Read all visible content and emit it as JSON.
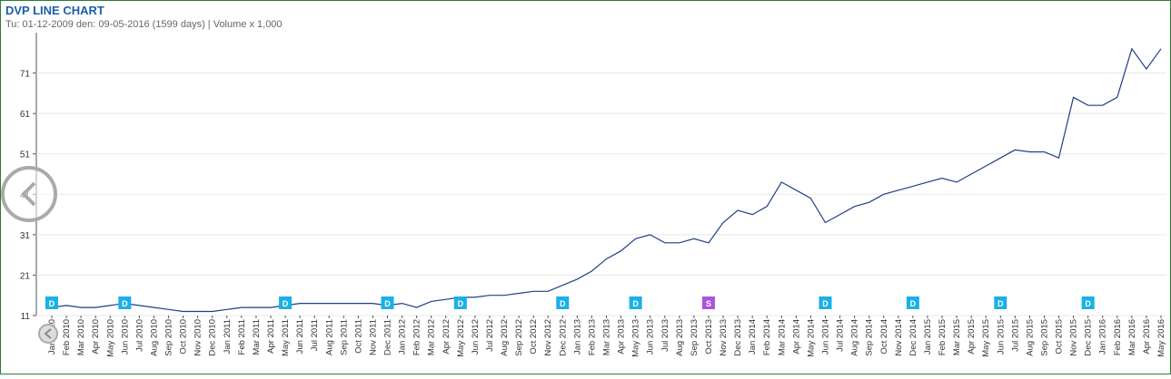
{
  "chart_data": {
    "type": "line",
    "title": "DVP LINE CHART",
    "subtitle": "Tu: 01-12-2009 den: 09-05-2016 (1599 days) | Volume x 1,000",
    "categories": [
      "Jan 2010",
      "Feb 2010",
      "Mar 2010",
      "Apr 2010",
      "May 2010",
      "Jun 2010",
      "Jul 2010",
      "Aug 2010",
      "Sep 2010",
      "Oct 2010",
      "Nov 2010",
      "Dec 2010",
      "Jan 2011",
      "Feb 2011",
      "Mar 2011",
      "Apr 2011",
      "May 2011",
      "Jun 2011",
      "Jul 2011",
      "Aug 2011",
      "Sep 2011",
      "Oct 2011",
      "Nov 2011",
      "Dec 2011",
      "Jan 2012",
      "Feb 2012",
      "Mar 2012",
      "Apr 2012",
      "May 2012",
      "Jun 2012",
      "Jul 2012",
      "Aug 2012",
      "Sep 2012",
      "Oct 2012",
      "Nov 2012",
      "Dec 2012",
      "Jan 2013",
      "Feb 2013",
      "Mar 2013",
      "Apr 2013",
      "May 2013",
      "Jun 2013",
      "Jul 2013",
      "Aug 2013",
      "Sep 2013",
      "Oct 2013",
      "Nov 2013",
      "Dec 2013",
      "Jan 2014",
      "Feb 2014",
      "Mar 2014",
      "Apr 2014",
      "May 2014",
      "Jun 2014",
      "Jul 2014",
      "Aug 2014",
      "Sep 2014",
      "Oct 2014",
      "Nov 2014",
      "Dec 2014",
      "Jan 2015",
      "Feb 2015",
      "Mar 2015",
      "Apr 2015",
      "May 2015",
      "Jun 2015",
      "Jul 2015",
      "Aug 2015",
      "Sep 2015",
      "Oct 2015",
      "Nov 2015",
      "Dec 2015",
      "Jan 2016",
      "Feb 2016",
      "Mar 2016",
      "Apr 2016",
      "May 2016"
    ],
    "series": [
      {
        "name": "DVP",
        "color": "#1f3f86",
        "values": [
          13,
          13.5,
          13,
          13,
          13.5,
          14,
          13.5,
          13,
          12.5,
          12,
          12,
          12,
          12.5,
          13,
          13,
          13,
          13.5,
          14,
          14,
          14,
          14,
          14,
          14,
          13.5,
          14,
          13,
          14.5,
          15,
          15.5,
          15.5,
          16,
          16,
          16.5,
          17,
          17,
          18.5,
          20,
          22,
          25,
          27,
          30,
          31,
          29,
          29,
          30,
          29,
          34,
          37,
          36,
          38,
          44,
          42,
          40,
          34,
          36,
          38,
          39,
          41,
          42,
          43,
          44,
          45,
          44,
          46,
          48,
          50,
          52,
          51.5,
          51.5,
          50,
          65,
          63,
          63,
          65,
          77,
          72,
          77
        ]
      }
    ],
    "ylim": [
      11,
      81
    ],
    "yticks": [
      11,
      21,
      31,
      41,
      51,
      61,
      71
    ],
    "grid": true,
    "annotations": [
      {
        "x": "Jan 2010",
        "label": "D",
        "color": "#1ab0e8"
      },
      {
        "x": "Jun 2010",
        "label": "D",
        "color": "#1ab0e8"
      },
      {
        "x": "May 2011",
        "label": "D",
        "color": "#1ab0e8"
      },
      {
        "x": "Dec 2011",
        "label": "D",
        "color": "#1ab0e8"
      },
      {
        "x": "May 2012",
        "label": "D",
        "color": "#1ab0e8"
      },
      {
        "x": "Dec 2012",
        "label": "D",
        "color": "#1ab0e8"
      },
      {
        "x": "May 2013",
        "label": "D",
        "color": "#1ab0e8"
      },
      {
        "x": "Oct 2013",
        "label": "S",
        "color": "#a855e0"
      },
      {
        "x": "Jun 2014",
        "label": "D",
        "color": "#1ab0e8"
      },
      {
        "x": "Dec 2014",
        "label": "D",
        "color": "#1ab0e8"
      },
      {
        "x": "Jun 2015",
        "label": "D",
        "color": "#1ab0e8"
      },
      {
        "x": "Dec 2015",
        "label": "D",
        "color": "#1ab0e8"
      }
    ]
  }
}
